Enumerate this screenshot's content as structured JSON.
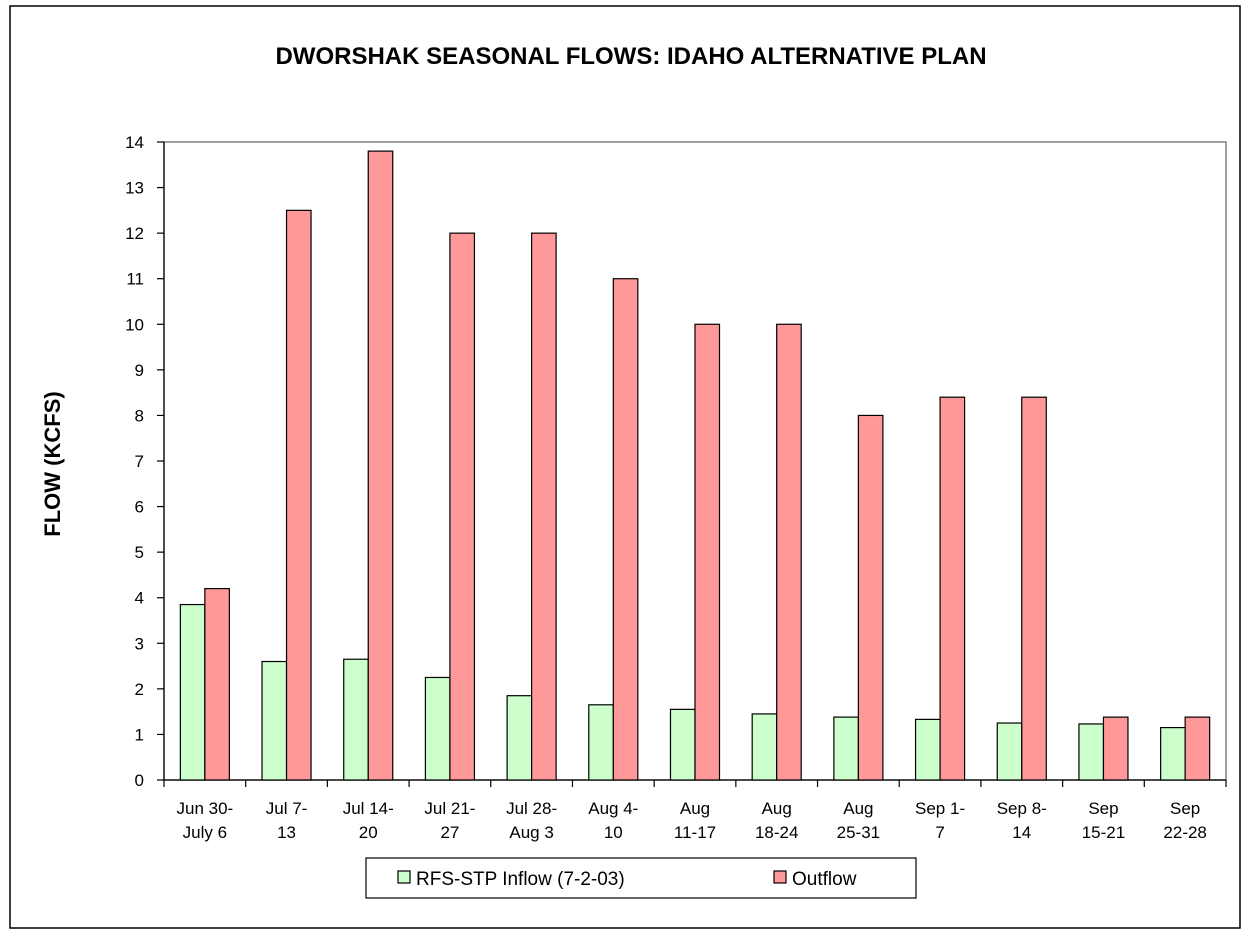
{
  "chart_data": {
    "type": "bar",
    "title": "DWORSHAK SEASONAL FLOWS: IDAHO ALTERNATIVE PLAN",
    "xlabel": "",
    "ylabel": "FLOW (KCFS)",
    "ylim": [
      0,
      14
    ],
    "yticks": [
      0,
      1,
      2,
      3,
      4,
      5,
      6,
      7,
      8,
      9,
      10,
      11,
      12,
      13,
      14
    ],
    "grid": false,
    "legend_position": "bottom",
    "categories": [
      [
        "Jun 30-",
        "July 6"
      ],
      [
        "Jul 7-",
        "13"
      ],
      [
        "Jul 14-",
        "20"
      ],
      [
        "Jul 21-",
        "27"
      ],
      [
        "Jul 28-",
        "Aug 3"
      ],
      [
        "Aug 4-",
        "10"
      ],
      [
        "Aug",
        "11-17"
      ],
      [
        "Aug",
        "18-24"
      ],
      [
        "Aug",
        "25-31"
      ],
      [
        "Sep 1-",
        "7"
      ],
      [
        "Sep 8-",
        "14"
      ],
      [
        "Sep",
        "15-21"
      ],
      [
        "Sep",
        "22-28"
      ]
    ],
    "series": [
      {
        "name": "RFS-STP Inflow (7-2-03)",
        "color": "#ccffcc",
        "values": [
          3.85,
          2.6,
          2.65,
          2.25,
          1.85,
          1.65,
          1.55,
          1.45,
          1.38,
          1.33,
          1.25,
          1.23,
          1.15
        ]
      },
      {
        "name": "Outflow",
        "color": "#ff9999",
        "values": [
          4.2,
          12.5,
          13.8,
          12.0,
          12.0,
          11.0,
          10.0,
          10.0,
          8.0,
          8.4,
          8.4,
          1.38,
          1.38
        ]
      }
    ]
  }
}
